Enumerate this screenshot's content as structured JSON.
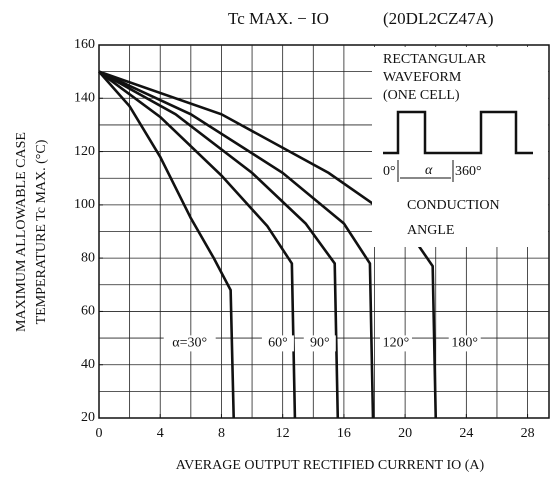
{
  "chart_data": {
    "type": "line",
    "title": "Tc MAX. − IO",
    "subtitle": "(20DL2CZ47A)",
    "x_label": "AVERAGE OUTPUT RECTIFIED CURRENT  IO  (A)",
    "y_label": [
      "MAXIMUM ALLOWABLE CASE",
      "TEMPERATURE  Tc MAX.  (°C)"
    ],
    "xlim": [
      0,
      29.4
    ],
    "ylim": [
      20,
      160
    ],
    "xticks": [
      0,
      4,
      8,
      12,
      16,
      20,
      24,
      28
    ],
    "yticks": [
      20,
      40,
      60,
      80,
      100,
      120,
      140,
      160
    ],
    "xgrid": [
      2,
      4,
      6,
      8,
      10,
      12,
      14,
      16,
      18,
      20,
      22,
      24,
      26,
      28
    ],
    "ygrid": [
      30,
      40,
      50,
      60,
      70,
      80,
      90,
      100,
      110,
      120,
      130,
      140,
      150
    ],
    "grid": true,
    "color": "#111111",
    "series": [
      {
        "name": "α=30°",
        "x": [
          0,
          2,
          4,
          6,
          7.5,
          8.6,
          8.8
        ],
        "values": [
          150,
          137,
          118,
          95,
          80,
          68,
          20
        ]
      },
      {
        "name": "60°",
        "x": [
          0,
          4,
          8,
          11,
          12.6,
          12.8
        ],
        "values": [
          150,
          133,
          111,
          92,
          78,
          20
        ]
      },
      {
        "name": "90°",
        "x": [
          0,
          5,
          10,
          13.5,
          15.4,
          15.6
        ],
        "values": [
          150,
          134,
          112,
          93,
          78,
          20
        ]
      },
      {
        "name": "120°",
        "x": [
          0,
          6,
          12,
          16,
          17.7,
          17.9
        ],
        "values": [
          150,
          134,
          112,
          93,
          78,
          20
        ]
      },
      {
        "name": "180°",
        "x": [
          0,
          8,
          15,
          20,
          21.8,
          22
        ],
        "values": [
          150,
          134,
          112,
          92,
          77,
          20
        ]
      }
    ],
    "inset": {
      "lines": [
        "RECTANGULAR",
        "WAVEFORM",
        "(ONE CELL)"
      ],
      "start": "0°",
      "angle": "α",
      "end": "360°",
      "caption": [
        "CONDUCTION",
        "ANGLE"
      ]
    }
  }
}
